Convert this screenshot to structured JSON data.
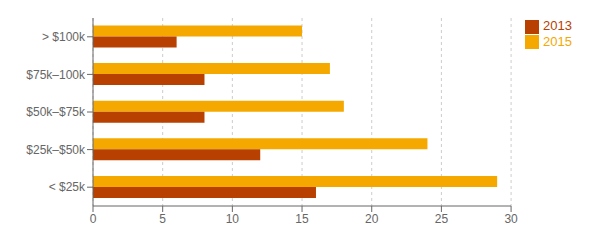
{
  "chart_data": {
    "type": "bar",
    "orientation": "horizontal",
    "categories": [
      "> $100k",
      "$75k–100k",
      "$50k–$75k",
      "$25k–$50k",
      "< $25k"
    ],
    "series": [
      {
        "name": "2015",
        "color": "#F5A800",
        "values": [
          15,
          17,
          18,
          24,
          29
        ]
      },
      {
        "name": "2013",
        "color": "#B84000",
        "values": [
          6,
          8,
          8,
          12,
          16
        ]
      }
    ],
    "xlim": [
      0,
      30
    ],
    "xticks": [
      0,
      5,
      10,
      15,
      20,
      25,
      30
    ],
    "grid": true,
    "legend": "upper right"
  }
}
